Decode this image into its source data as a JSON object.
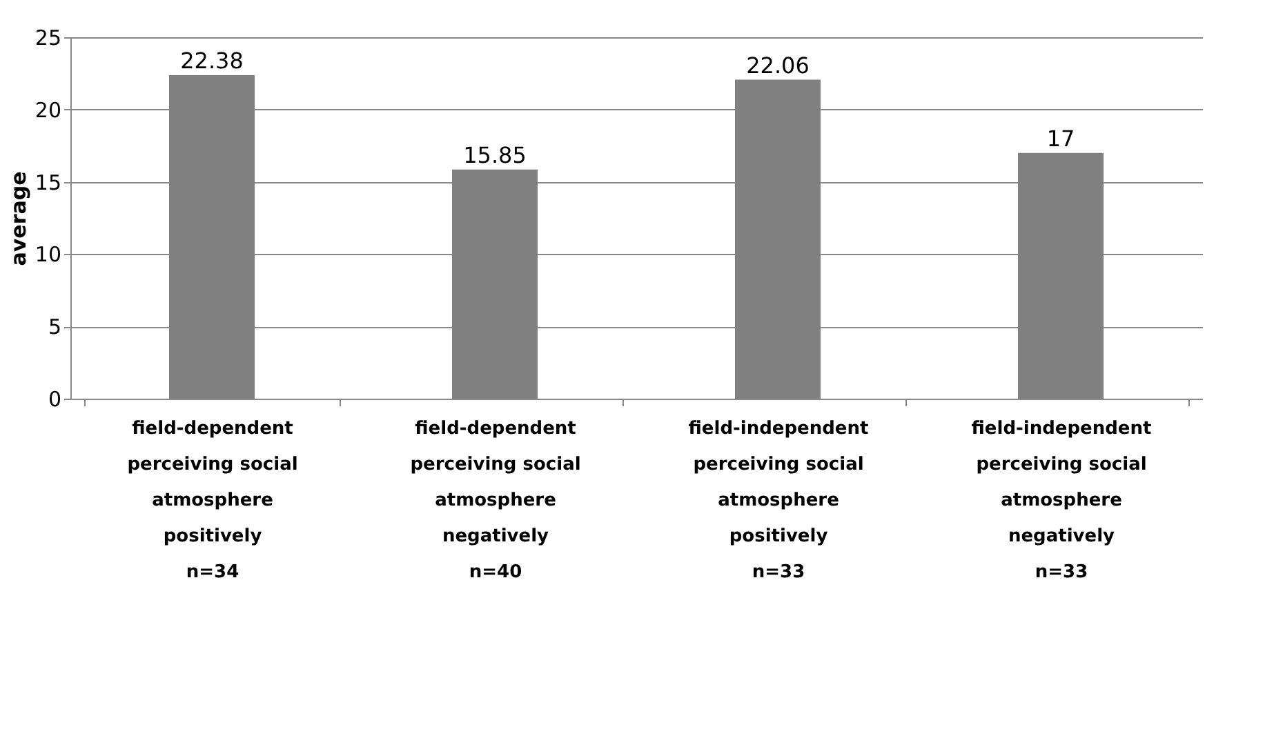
{
  "chart_data": {
    "type": "bar",
    "categories": [
      "field-dependent\nperceiving social\natmosphere\npositively\nn=34",
      "field-dependent\nperceiving social\natmosphere\nnegatively\nn=40",
      "field-independent\nperceiving social\natmosphere\npositively\nn=33",
      "field-independent\nperceiving social\natmosphere\nnegatively\nn=33"
    ],
    "values": [
      22.38,
      15.85,
      22.06,
      17
    ],
    "color": "#808080",
    "ylabel": "average",
    "ylim": [
      0,
      25
    ],
    "yticks": [
      0,
      5,
      10,
      15,
      20,
      25
    ],
    "grid": "y",
    "data_labels": true
  }
}
